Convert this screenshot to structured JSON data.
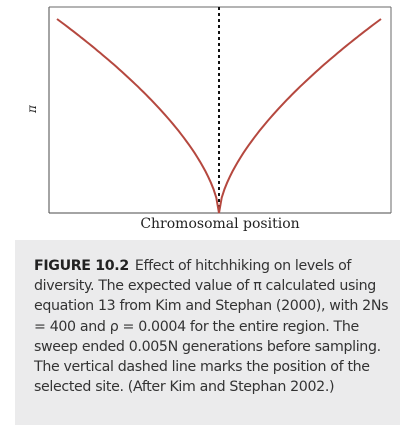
{
  "figure": {
    "caption_label": "FIGURE 10.2",
    "caption_text": "Effect of hitchhiking on levels of diversity. The expected value of π calculated using equation 13 from Kim and Stephan (2000), with 2Ns = 400 and ρ = 0.0004 for the entire region. The sweep ended 0.005N generations before sampling. The vertical dashed line marks the position of the selected site. (After Kim and Stephan 2002.)"
  },
  "chart_data": {
    "type": "line",
    "xlabel": "Chromosomal position",
    "ylabel": "π",
    "grid": false,
    "selected_site": 0.5,
    "series": [
      {
        "color": "#b5483f",
        "x": [
          0,
          0.1,
          0.2,
          0.3,
          0.4,
          0.45,
          0.5,
          0.55,
          0.6,
          0.7,
          0.8,
          0.9,
          1.0
        ],
        "y": [
          0.98,
          0.92,
          0.82,
          0.66,
          0.41,
          0.22,
          0.0,
          0.22,
          0.41,
          0.66,
          0.82,
          0.92,
          0.98
        ]
      }
    ]
  }
}
